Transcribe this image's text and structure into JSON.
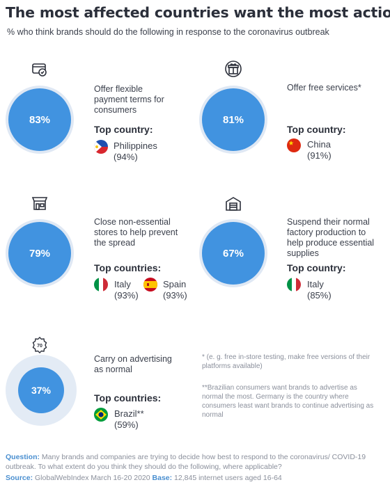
{
  "title": "The most affected countries want the most action",
  "subtitle": "% who think brands should do the following in response to the coronavirus outbreak",
  "colors": {
    "accent": "#4193e0",
    "ring": "#dfe8f4",
    "text": "#2b2f3a",
    "muted": "#8a8f9b",
    "footer_label": "#4a8fd0"
  },
  "items": [
    {
      "icon": "payment-card-icon",
      "percent": "83%",
      "value": 83,
      "description": "Offer flexible payment terms for consumers",
      "top_label": "Top country:",
      "countries": [
        {
          "flag": "philippines-flag",
          "name": "Philippines",
          "pct": "(94%)"
        }
      ]
    },
    {
      "icon": "gift-icon",
      "percent": "81%",
      "value": 81,
      "description": "Offer free services*",
      "top_label": "Top country:",
      "countries": [
        {
          "flag": "china-flag",
          "name": "China",
          "pct": "(91%)"
        }
      ]
    },
    {
      "icon": "store-icon",
      "percent": "79%",
      "value": 79,
      "description": "Close non-essential stores to help prevent the spread",
      "top_label": "Top countries:",
      "countries": [
        {
          "flag": "italy-flag",
          "name": "Italy",
          "pct": "(93%)"
        },
        {
          "flag": "spain-flag",
          "name": "Spain",
          "pct": "(93%)"
        }
      ]
    },
    {
      "icon": "factory-icon",
      "percent": "67%",
      "value": 67,
      "description": "Suspend their normal factory production to help produce essential supplies",
      "top_label": "Top country:",
      "countries": [
        {
          "flag": "italy-flag",
          "name": "Italy",
          "pct": "(85%)"
        }
      ]
    },
    {
      "icon": "advertising-badge-icon",
      "percent": "37%",
      "value": 37,
      "description": "Carry on advertising as normal",
      "top_label": "Top countries:",
      "countries": [
        {
          "flag": "brazil-flag",
          "name": "Brazil**",
          "pct": "(59%)"
        }
      ]
    }
  ],
  "notes": {
    "free_services": "* (e. g. free in-store testing, make free versions of their platforms available)",
    "brazil": "**Brazilian consumers want brands to advertise as normal the most. Germany is the country where consumers least want brands to continue advertising as normal"
  },
  "footer": {
    "question_label": "Question:",
    "question": "Many brands and companies are trying to decide how best to respond to the coronavirus/ COVID-19 outbreak. To what extent do you think they should do the following, where applicable?",
    "source_label": "Source:",
    "source": "GlobalWebIndex March 16-20 2020",
    "base_label": "Base:",
    "base": "12,845 internet users aged 16-64"
  }
}
